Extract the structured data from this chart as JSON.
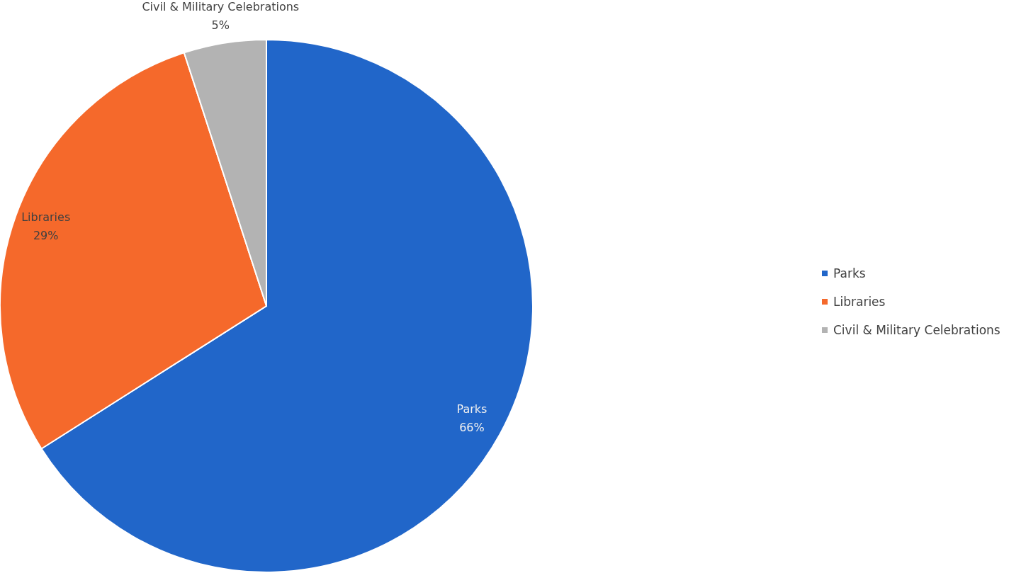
{
  "chart_data": {
    "type": "pie",
    "categories": [
      "Parks",
      "Libraries",
      "Civil & Military Celebrations"
    ],
    "values": [
      66,
      29,
      5
    ],
    "colors": [
      "#2166c9",
      "#f5692b",
      "#b3b3b3"
    ],
    "value_labels": [
      "66%",
      "29%",
      "5%"
    ],
    "legend": "right"
  }
}
